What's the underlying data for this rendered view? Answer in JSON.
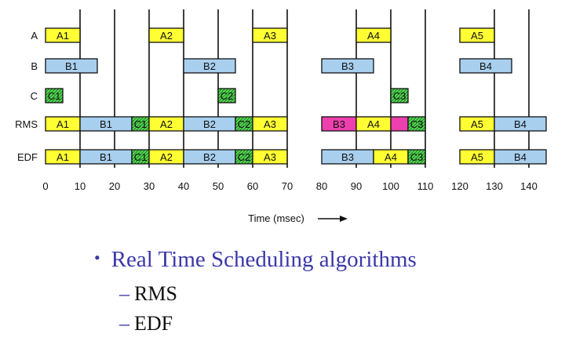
{
  "diagram": {
    "rows": [
      "A",
      "B",
      "C",
      "RMS",
      "EDF"
    ],
    "axis": {
      "min": 0,
      "max": 145,
      "ticks": [
        0,
        10,
        20,
        30,
        40,
        50,
        60,
        70,
        80,
        90,
        100,
        110,
        120,
        130,
        140
      ],
      "time_label": "Time (msec)"
    },
    "period_markers": [
      10,
      20,
      30,
      40,
      50,
      60,
      70,
      90,
      100,
      110,
      130,
      140
    ],
    "colors": {
      "A": "#ffff33",
      "B": "#a8cfee",
      "C": "#55dd55",
      "miss": "#ee3fae",
      "outline": "#111111"
    },
    "blocks": {
      "A": [
        {
          "label": "A1",
          "start": 0,
          "end": 10,
          "kind": "A"
        },
        {
          "label": "A2",
          "start": 30,
          "end": 40,
          "kind": "A"
        },
        {
          "label": "A3",
          "start": 60,
          "end": 70,
          "kind": "A"
        },
        {
          "label": "A4",
          "start": 90,
          "end": 100,
          "kind": "A"
        },
        {
          "label": "A5",
          "start": 120,
          "end": 130,
          "kind": "A"
        }
      ],
      "B": [
        {
          "label": "B1",
          "start": 0,
          "end": 15,
          "kind": "B"
        },
        {
          "label": "B2",
          "start": 40,
          "end": 55,
          "kind": "B"
        },
        {
          "label": "B3",
          "start": 80,
          "end": 95,
          "kind": "B"
        },
        {
          "label": "B4",
          "start": 120,
          "end": 135,
          "kind": "B"
        }
      ],
      "C": [
        {
          "label": "C1",
          "start": 0,
          "end": 5,
          "kind": "C"
        },
        {
          "label": "C2",
          "start": 50,
          "end": 55,
          "kind": "C"
        },
        {
          "label": "C3",
          "start": 100,
          "end": 105,
          "kind": "C"
        }
      ],
      "RMS": [
        {
          "label": "A1",
          "start": 0,
          "end": 10,
          "kind": "A"
        },
        {
          "label": "B1",
          "start": 10,
          "end": 25,
          "kind": "B"
        },
        {
          "label": "C1",
          "start": 25,
          "end": 30,
          "kind": "C"
        },
        {
          "label": "A2",
          "start": 30,
          "end": 40,
          "kind": "A"
        },
        {
          "label": "B2",
          "start": 40,
          "end": 55,
          "kind": "B"
        },
        {
          "label": "C2",
          "start": 55,
          "end": 60,
          "kind": "C"
        },
        {
          "label": "A3",
          "start": 60,
          "end": 70,
          "kind": "A"
        },
        {
          "label": "B3",
          "start": 80,
          "end": 90,
          "kind": "miss"
        },
        {
          "label": "A4",
          "start": 90,
          "end": 100,
          "kind": "A"
        },
        {
          "label": "",
          "start": 100,
          "end": 105,
          "kind": "miss"
        },
        {
          "label": "C3",
          "start": 105,
          "end": 110,
          "kind": "C"
        },
        {
          "label": "A5",
          "start": 120,
          "end": 130,
          "kind": "A"
        },
        {
          "label": "B4",
          "start": 130,
          "end": 145,
          "kind": "B"
        }
      ],
      "EDF": [
        {
          "label": "A1",
          "start": 0,
          "end": 10,
          "kind": "A"
        },
        {
          "label": "B1",
          "start": 10,
          "end": 25,
          "kind": "B"
        },
        {
          "label": "C1",
          "start": 25,
          "end": 30,
          "kind": "C"
        },
        {
          "label": "A2",
          "start": 30,
          "end": 40,
          "kind": "A"
        },
        {
          "label": "B2",
          "start": 40,
          "end": 55,
          "kind": "B"
        },
        {
          "label": "C2",
          "start": 55,
          "end": 60,
          "kind": "C"
        },
        {
          "label": "A3",
          "start": 60,
          "end": 70,
          "kind": "A"
        },
        {
          "label": "B3",
          "start": 80,
          "end": 95,
          "kind": "B"
        },
        {
          "label": "A4",
          "start": 95,
          "end": 105,
          "kind": "A"
        },
        {
          "label": "C3",
          "start": 105,
          "end": 110,
          "kind": "C"
        },
        {
          "label": "A5",
          "start": 120,
          "end": 130,
          "kind": "A"
        },
        {
          "label": "B4",
          "start": 130,
          "end": 145,
          "kind": "B"
        }
      ]
    }
  },
  "bullets": {
    "main": "Real Time Scheduling algorithms",
    "items": [
      "RMS",
      "EDF"
    ]
  }
}
